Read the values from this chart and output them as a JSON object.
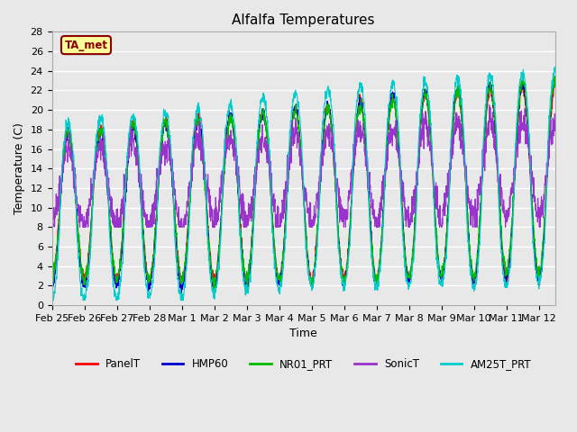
{
  "title": "Alfalfa Temperatures",
  "xlabel": "Time",
  "ylabel": "Temperature (C)",
  "ylim": [
    0,
    28
  ],
  "yticks": [
    0,
    2,
    4,
    6,
    8,
    10,
    12,
    14,
    16,
    18,
    20,
    22,
    24,
    26,
    28
  ],
  "xtick_labels": [
    "Feb 25",
    "Feb 26",
    "Feb 27",
    "Feb 28",
    "Mar 1",
    "Mar 2",
    "Mar 3",
    "Mar 4",
    "Mar 5",
    "Mar 6",
    "Mar 7",
    "Mar 8",
    "Mar 9",
    "Mar 10",
    "Mar 11",
    "Mar 12"
  ],
  "annotation_text": "TA_met",
  "annotation_color": "#8B0000",
  "annotation_bg": "#FFFF99",
  "series_colors": {
    "PanelT": "#FF0000",
    "HMP60": "#0000CC",
    "NR01_PRT": "#00BB00",
    "SonicT": "#9933CC",
    "AM25T_PRT": "#00CCCC"
  },
  "legend_entries": [
    "PanelT",
    "HMP60",
    "NR01_PRT",
    "SonicT",
    "AM25T_PRT"
  ],
  "bg_color": "#E8E8E8",
  "plot_bg_color": "#E8E8E8",
  "grid_color": "#FFFFFF",
  "n_points": 2000,
  "days": 15.5
}
